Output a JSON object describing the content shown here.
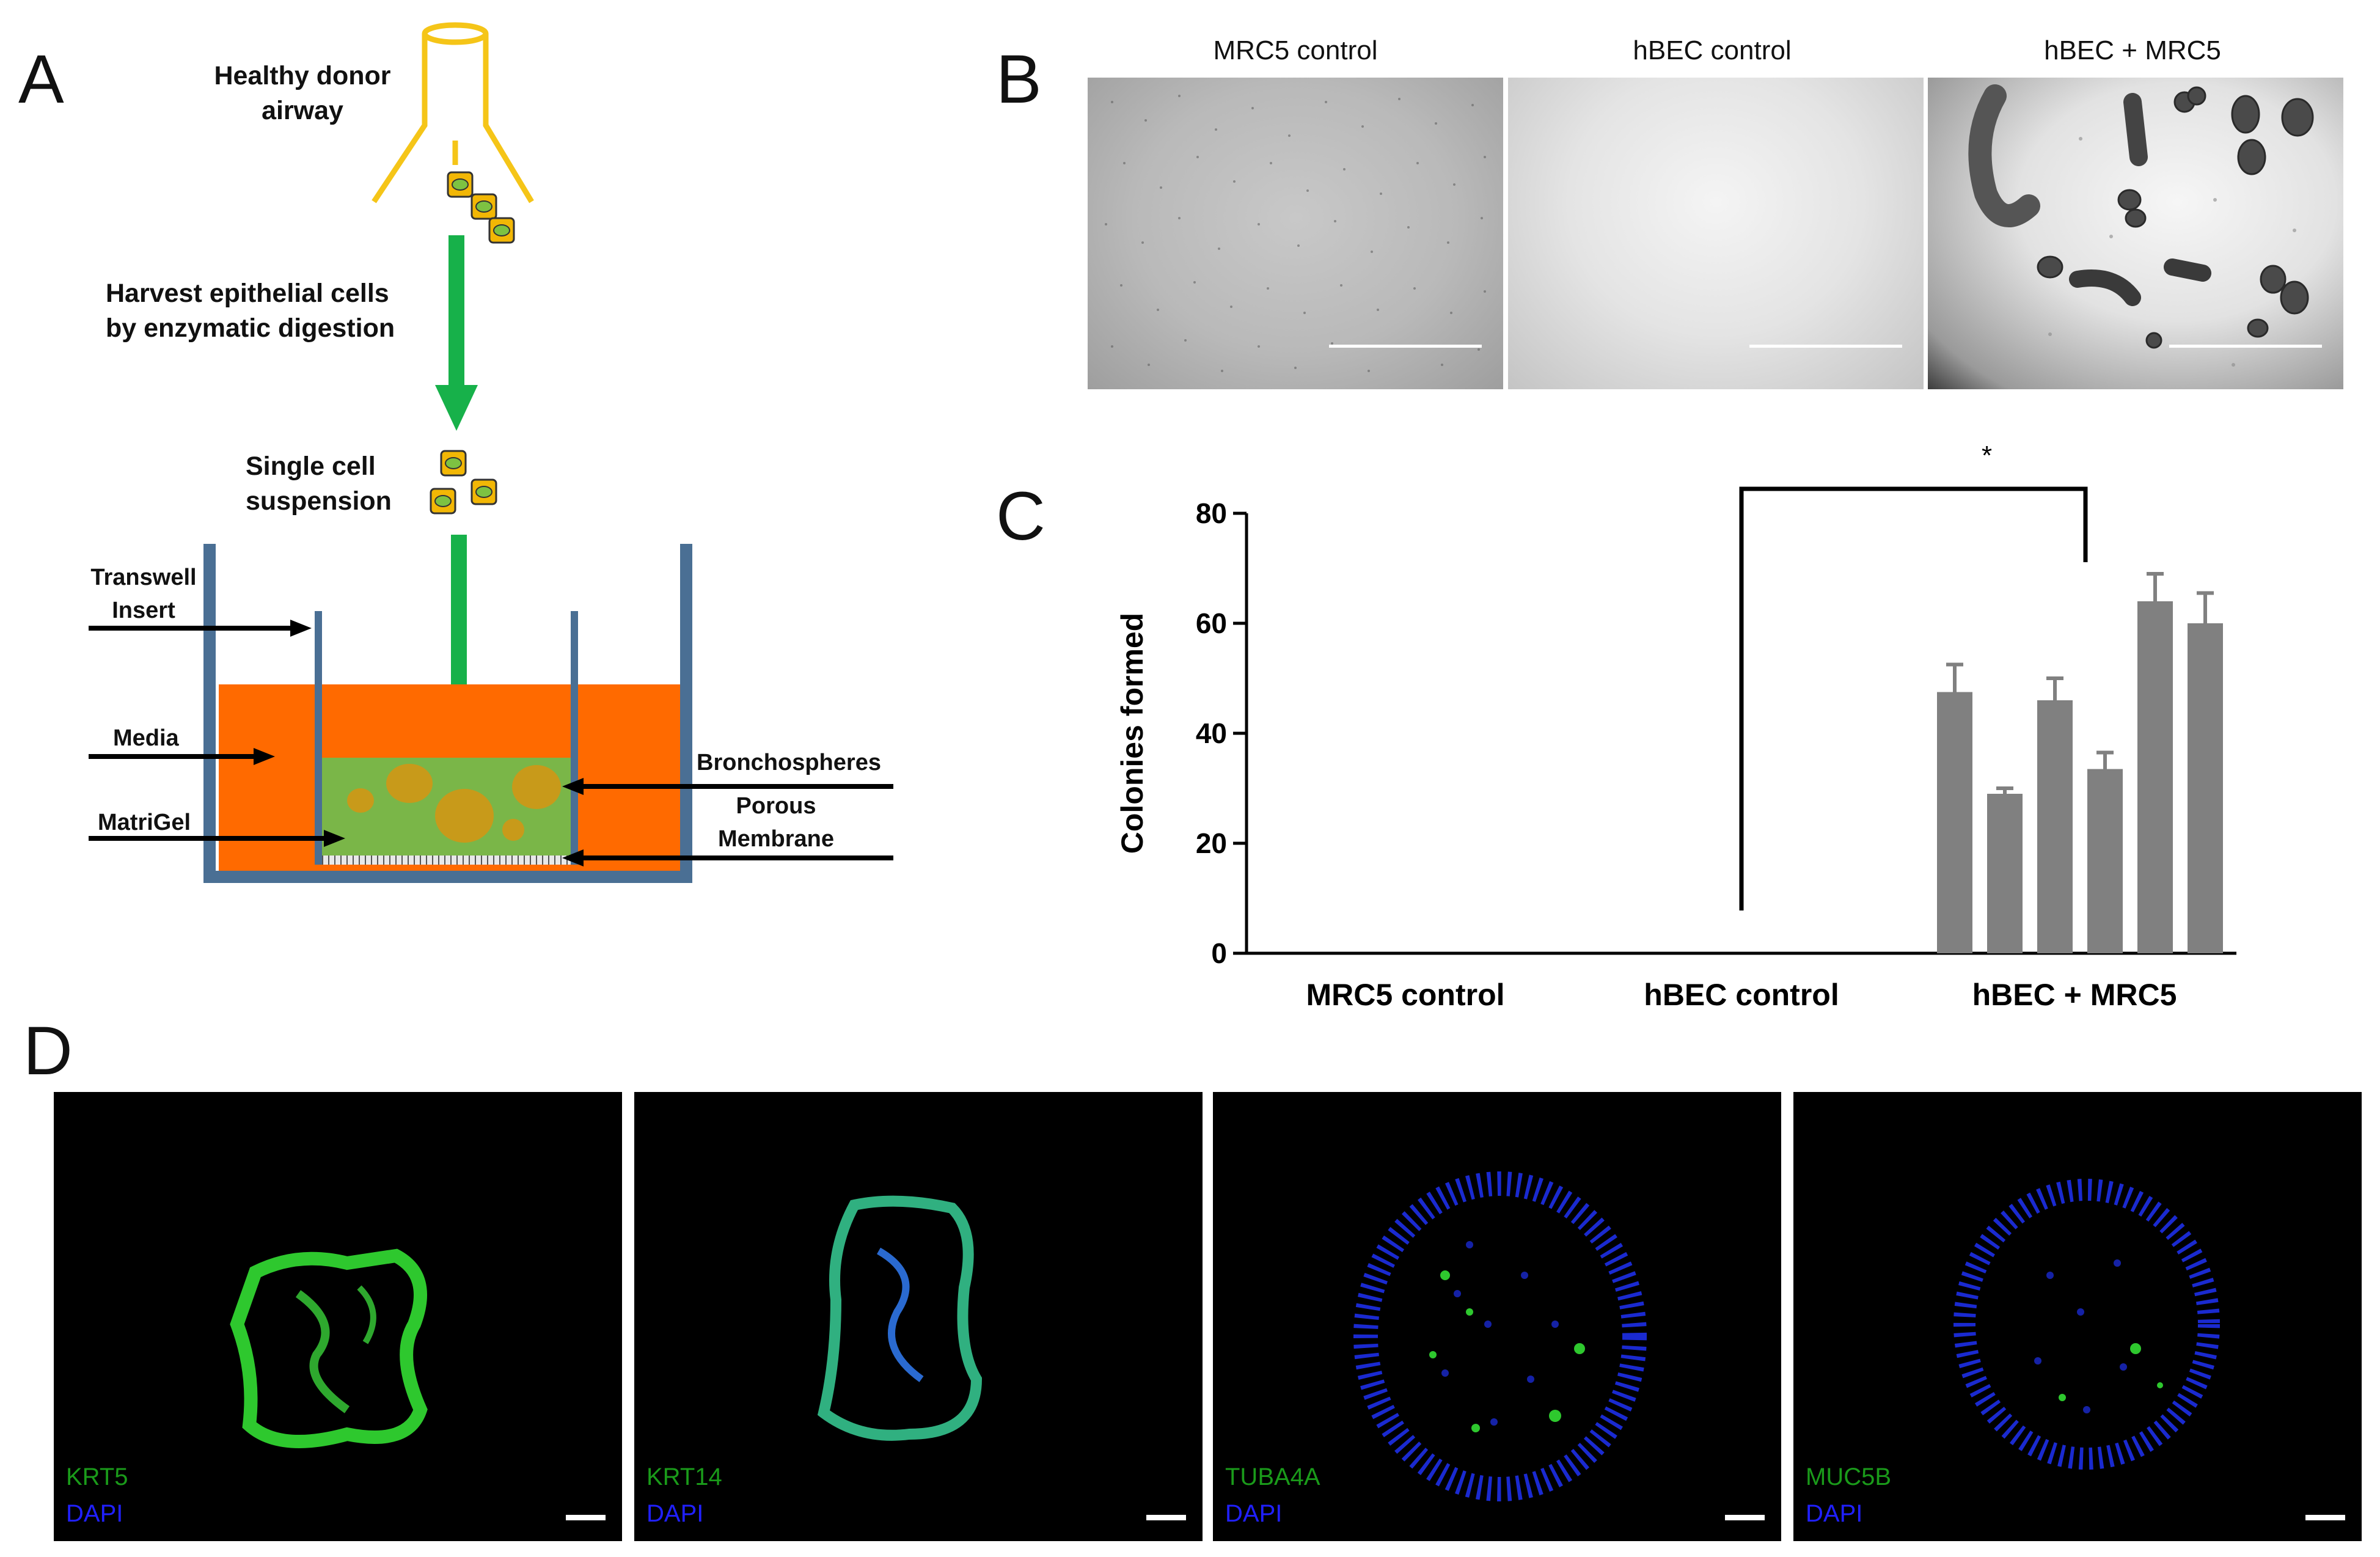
{
  "panels": {
    "a": "A",
    "b": "B",
    "c": "C",
    "d": "D"
  },
  "diagram": {
    "healthy_donor": [
      "Healthy donor",
      "airway"
    ],
    "harvest": [
      "Harvest epithelial cells",
      "by enzymatic digestion"
    ],
    "single_cell": [
      "Single cell",
      "suspension"
    ],
    "transwell": [
      "Transwell",
      "Insert"
    ],
    "media": "Media",
    "matrigel": "MatriGel",
    "bronchospheres": "Bronchospheres",
    "porous": [
      "Porous",
      "Membrane"
    ],
    "colors": {
      "airway": "#f5c518",
      "arrow": "#17b14a",
      "wall": "#4a6f94",
      "media": "#ff6a00",
      "gel": "#7ab648",
      "sphere": "#c89a1a",
      "cell": "#f2b705",
      "nucleus": "#7dc242"
    }
  },
  "micrographs": {
    "titles": [
      "MRC5 control",
      "hBEC control",
      "hBEC + MRC5"
    ]
  },
  "chart_data": {
    "type": "bar",
    "ylabel": "Colonies formed",
    "yticks": [
      "0",
      "20",
      "40",
      "60",
      "80"
    ],
    "ylim": [
      0,
      80
    ],
    "categories": [
      "MRC5 control",
      "hBEC control",
      "hBEC + MRC5"
    ],
    "series_values": {
      "MRC5 control": [],
      "hBEC control": [],
      "hBEC + MRC5": [
        47.5,
        29,
        46,
        33.5,
        64,
        60
      ]
    },
    "error": [
      5,
      1,
      4,
      3,
      5,
      5.5
    ],
    "significance": "*",
    "bar_color": "#808080"
  },
  "immuno": [
    {
      "marker": "KRT5",
      "dapi": "DAPI"
    },
    {
      "marker": "KRT14",
      "dapi": "DAPI"
    },
    {
      "marker": "TUBA4A",
      "dapi": "DAPI"
    },
    {
      "marker": "MUC5B",
      "dapi": "DAPI"
    }
  ],
  "colors": {
    "marker_text": "#1a9a1a",
    "dapi_text": "#2020ff"
  }
}
